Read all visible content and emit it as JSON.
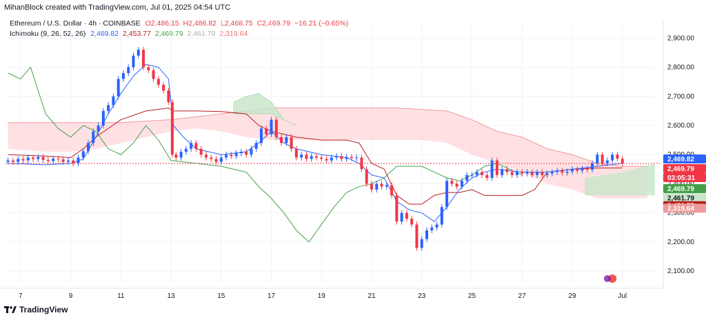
{
  "header": {
    "credit": "MihanBlock created with TradingView.com, Jul 01, 2025 04:54 UTC",
    "symbol_line": "Ethereum / U.S. Dollar · 4h · COINBASE",
    "ohlc": {
      "o": "O2,486.15",
      "h": "H2,486.82",
      "l": "L2,468.75",
      "c": "C2,469.79",
      "change": "−16.21 (−0.65%)"
    },
    "indicator_name": "Ichimoku (9, 26, 52, 26)",
    "indicator_values": {
      "conversion": "2,469.82",
      "base": "2,453.77",
      "lead1": "2,469.79",
      "lead2": "2,461.79",
      "lagging": "2,319.64"
    }
  },
  "footer": {
    "brand": "TradingView",
    "logo_icon": "tradingview-logo-icon"
  },
  "colors": {
    "up": "#2962ff",
    "down": "#f23645",
    "conversion": "#2962ff",
    "base": "#b71c1c",
    "lagging": "#43a047",
    "cloud_bull": "#c8e6c9",
    "cloud_bear": "#ffcdd2"
  },
  "chart_data": {
    "type": "candlestick",
    "ylim": [
      2060,
      2960
    ],
    "yticks": [
      2100,
      2200,
      2300,
      2400,
      2500,
      2600,
      2700,
      2800,
      2900
    ],
    "ytick_labels": [
      "2,100.00",
      "2,200.00",
      "2,300.00",
      "2,400.00",
      "2,500.00",
      "2,600.00",
      "2,700.00",
      "2,800.00",
      "2,900.00"
    ],
    "xlim": [
      6.4,
      32.3
    ],
    "xticks": [
      {
        "x": 7,
        "label": "7"
      },
      {
        "x": 9,
        "label": "9"
      },
      {
        "x": 11,
        "label": "11"
      },
      {
        "x": 13,
        "label": "13"
      },
      {
        "x": 15,
        "label": "15"
      },
      {
        "x": 17,
        "label": "17"
      },
      {
        "x": 19,
        "label": "19"
      },
      {
        "x": 21,
        "label": "21"
      },
      {
        "x": 23,
        "label": "23"
      },
      {
        "x": 25,
        "label": "25"
      },
      {
        "x": 27,
        "label": "27"
      },
      {
        "x": 29,
        "label": "29"
      },
      {
        "x": 31,
        "label": "Jul"
      }
    ],
    "candles_close": [
      [
        6.5,
        2480
      ],
      [
        6.7,
        2475
      ],
      [
        6.9,
        2485
      ],
      [
        7.1,
        2480
      ],
      [
        7.3,
        2490
      ],
      [
        7.5,
        2485
      ],
      [
        7.7,
        2492
      ],
      [
        7.9,
        2482
      ],
      [
        8.1,
        2478
      ],
      [
        8.3,
        2486
      ],
      [
        8.5,
        2484
      ],
      [
        8.7,
        2475
      ],
      [
        8.9,
        2480
      ],
      [
        9.1,
        2470
      ],
      [
        9.3,
        2490
      ],
      [
        9.5,
        2512
      ],
      [
        9.7,
        2540
      ],
      [
        9.9,
        2580
      ],
      [
        10.1,
        2600
      ],
      [
        10.3,
        2650
      ],
      [
        10.5,
        2670
      ],
      [
        10.7,
        2700
      ],
      [
        10.9,
        2760
      ],
      [
        11.1,
        2780
      ],
      [
        11.3,
        2800
      ],
      [
        11.5,
        2840
      ],
      [
        11.7,
        2860
      ],
      [
        11.9,
        2800
      ],
      [
        12.1,
        2790
      ],
      [
        12.3,
        2760
      ],
      [
        12.5,
        2740
      ],
      [
        12.7,
        2720
      ],
      [
        12.9,
        2680
      ],
      [
        13.05,
        2500
      ],
      [
        13.2,
        2490
      ],
      [
        13.4,
        2510
      ],
      [
        13.6,
        2520
      ],
      [
        13.8,
        2540
      ],
      [
        14.0,
        2520
      ],
      [
        14.2,
        2500
      ],
      [
        14.4,
        2490
      ],
      [
        14.6,
        2485
      ],
      [
        14.8,
        2475
      ],
      [
        15.0,
        2490
      ],
      [
        15.2,
        2500
      ],
      [
        15.4,
        2495
      ],
      [
        15.6,
        2505
      ],
      [
        15.8,
        2510
      ],
      [
        16.0,
        2500
      ],
      [
        16.2,
        2520
      ],
      [
        16.4,
        2540
      ],
      [
        16.6,
        2590
      ],
      [
        16.8,
        2570
      ],
      [
        17.0,
        2620
      ],
      [
        17.2,
        2560
      ],
      [
        17.4,
        2540
      ],
      [
        17.6,
        2560
      ],
      [
        17.8,
        2520
      ],
      [
        18.0,
        2490
      ],
      [
        18.2,
        2500
      ],
      [
        18.4,
        2485
      ],
      [
        18.6,
        2495
      ],
      [
        18.8,
        2490
      ],
      [
        19.0,
        2485
      ],
      [
        19.2,
        2480
      ],
      [
        19.4,
        2490
      ],
      [
        19.6,
        2495
      ],
      [
        19.8,
        2485
      ],
      [
        20.0,
        2492
      ],
      [
        20.2,
        2488
      ],
      [
        20.4,
        2490
      ],
      [
        20.6,
        2450
      ],
      [
        20.8,
        2400
      ],
      [
        21.0,
        2380
      ],
      [
        21.2,
        2400
      ],
      [
        21.4,
        2390
      ],
      [
        21.6,
        2395
      ],
      [
        21.8,
        2360
      ],
      [
        22.0,
        2270
      ],
      [
        22.2,
        2300
      ],
      [
        22.4,
        2280
      ],
      [
        22.6,
        2260
      ],
      [
        22.8,
        2180
      ],
      [
        23.0,
        2210
      ],
      [
        23.2,
        2240
      ],
      [
        23.4,
        2250
      ],
      [
        23.6,
        2260
      ],
      [
        23.8,
        2320
      ],
      [
        24.0,
        2410
      ],
      [
        24.2,
        2400
      ],
      [
        24.4,
        2390
      ],
      [
        24.6,
        2410
      ],
      [
        24.8,
        2430
      ],
      [
        25.0,
        2430
      ],
      [
        25.2,
        2440
      ],
      [
        25.4,
        2430
      ],
      [
        25.6,
        2420
      ],
      [
        25.8,
        2480
      ],
      [
        26.0,
        2430
      ],
      [
        26.2,
        2450
      ],
      [
        26.4,
        2440
      ],
      [
        26.6,
        2430
      ],
      [
        26.8,
        2440
      ],
      [
        27.0,
        2435
      ],
      [
        27.2,
        2440
      ],
      [
        27.4,
        2430
      ],
      [
        27.6,
        2440
      ],
      [
        27.8,
        2430
      ],
      [
        28.0,
        2435
      ],
      [
        28.2,
        2440
      ],
      [
        28.4,
        2445
      ],
      [
        28.6,
        2438
      ],
      [
        28.8,
        2442
      ],
      [
        29.0,
        2450
      ],
      [
        29.2,
        2445
      ],
      [
        29.4,
        2452
      ],
      [
        29.6,
        2448
      ],
      [
        29.8,
        2470
      ],
      [
        30.0,
        2500
      ],
      [
        30.2,
        2470
      ],
      [
        30.4,
        2480
      ],
      [
        30.6,
        2500
      ],
      [
        30.8,
        2486
      ],
      [
        31.0,
        2470
      ]
    ],
    "tenkan": [
      [
        6.5,
        2470
      ],
      [
        8,
        2465
      ],
      [
        9,
        2470
      ],
      [
        9.5,
        2485
      ],
      [
        10,
        2560
      ],
      [
        10.5,
        2640
      ],
      [
        11,
        2710
      ],
      [
        11.5,
        2770
      ],
      [
        12,
        2810
      ],
      [
        12.5,
        2800
      ],
      [
        12.9,
        2760
      ],
      [
        13.1,
        2600
      ],
      [
        13.5,
        2560
      ],
      [
        14,
        2520
      ],
      [
        15,
        2500
      ],
      [
        16,
        2510
      ],
      [
        16.5,
        2540
      ],
      [
        17,
        2580
      ],
      [
        17.5,
        2540
      ],
      [
        18,
        2520
      ],
      [
        19,
        2500
      ],
      [
        20,
        2490
      ],
      [
        20.5,
        2470
      ],
      [
        21,
        2430
      ],
      [
        21.5,
        2420
      ],
      [
        22,
        2340
      ],
      [
        22.5,
        2310
      ],
      [
        23,
        2300
      ],
      [
        23.5,
        2270
      ],
      [
        24,
        2320
      ],
      [
        24.5,
        2380
      ],
      [
        25,
        2420
      ],
      [
        25.5,
        2440
      ],
      [
        26,
        2450
      ],
      [
        27,
        2440
      ],
      [
        28,
        2440
      ],
      [
        29,
        2450
      ],
      [
        30,
        2460
      ],
      [
        31,
        2470
      ]
    ],
    "kijun": [
      [
        6.5,
        2500
      ],
      [
        8,
        2495
      ],
      [
        9,
        2490
      ],
      [
        9.5,
        2520
      ],
      [
        10,
        2560
      ],
      [
        11,
        2620
      ],
      [
        12,
        2650
      ],
      [
        12.9,
        2660
      ],
      [
        13.1,
        2650
      ],
      [
        14,
        2650
      ],
      [
        15,
        2648
      ],
      [
        16,
        2640
      ],
      [
        16.5,
        2600
      ],
      [
        17,
        2580
      ],
      [
        17.5,
        2570
      ],
      [
        18,
        2560
      ],
      [
        19,
        2550
      ],
      [
        20,
        2550
      ],
      [
        20.5,
        2540
      ],
      [
        21,
        2470
      ],
      [
        21.5,
        2450
      ],
      [
        22,
        2360
      ],
      [
        22.5,
        2330
      ],
      [
        23,
        2330
      ],
      [
        23.5,
        2360
      ],
      [
        24,
        2370
      ],
      [
        24.5,
        2370
      ],
      [
        25,
        2380
      ],
      [
        25.5,
        2360
      ],
      [
        26,
        2360
      ],
      [
        27,
        2360
      ],
      [
        27.5,
        2380
      ],
      [
        28,
        2440
      ],
      [
        29,
        2450
      ],
      [
        30,
        2454
      ],
      [
        31,
        2454
      ]
    ],
    "lagging": [
      [
        6.5,
        2780
      ],
      [
        7,
        2760
      ],
      [
        7.4,
        2800
      ],
      [
        8,
        2640
      ],
      [
        8.5,
        2590
      ],
      [
        9,
        2560
      ],
      [
        9.5,
        2600
      ],
      [
        10,
        2580
      ],
      [
        10.5,
        2520
      ],
      [
        11,
        2500
      ],
      [
        11.5,
        2540
      ],
      [
        12,
        2600
      ],
      [
        12.5,
        2550
      ],
      [
        13,
        2480
      ],
      [
        14,
        2470
      ],
      [
        15,
        2460
      ],
      [
        15.5,
        2450
      ],
      [
        16,
        2440
      ],
      [
        16.5,
        2390
      ],
      [
        17,
        2350
      ],
      [
        17.5,
        2300
      ],
      [
        18,
        2240
      ],
      [
        18.5,
        2200
      ],
      [
        19,
        2260
      ],
      [
        19.5,
        2320
      ],
      [
        20,
        2370
      ],
      [
        20.5,
        2390
      ],
      [
        21,
        2400
      ],
      [
        21.5,
        2420
      ],
      [
        22,
        2460
      ],
      [
        23,
        2460
      ],
      [
        24,
        2420
      ],
      [
        24.5,
        2410
      ],
      [
        25,
        2430
      ],
      [
        25.5,
        2460
      ],
      [
        26,
        2470
      ],
      [
        26.5,
        2450
      ],
      [
        27,
        2430
      ]
    ],
    "kumo_upper": [
      [
        6.5,
        2610
      ],
      [
        8,
        2610
      ],
      [
        9,
        2610
      ],
      [
        10,
        2610
      ],
      [
        11,
        2610
      ],
      [
        12,
        2615
      ],
      [
        13,
        2620
      ],
      [
        14,
        2630
      ],
      [
        15,
        2640
      ],
      [
        16,
        2650
      ],
      [
        17,
        2660
      ],
      [
        18,
        2660
      ],
      [
        19,
        2660
      ],
      [
        20,
        2660
      ],
      [
        21,
        2660
      ],
      [
        22,
        2660
      ],
      [
        23,
        2655
      ],
      [
        24,
        2650
      ],
      [
        25,
        2620
      ],
      [
        26,
        2580
      ],
      [
        27,
        2560
      ],
      [
        28,
        2520
      ],
      [
        29,
        2500
      ],
      [
        30,
        2470
      ],
      [
        31,
        2460
      ],
      [
        32,
        2460
      ]
    ],
    "kumo_lower": [
      [
        6.5,
        2520
      ],
      [
        8,
        2510
      ],
      [
        9,
        2510
      ],
      [
        10,
        2520
      ],
      [
        11,
        2540
      ],
      [
        12,
        2560
      ],
      [
        13,
        2580
      ],
      [
        14,
        2590
      ],
      [
        15,
        2580
      ],
      [
        16,
        2560
      ],
      [
        17,
        2550
      ],
      [
        18,
        2550
      ],
      [
        19,
        2550
      ],
      [
        20,
        2550
      ],
      [
        21,
        2550
      ],
      [
        22,
        2550
      ],
      [
        23,
        2550
      ],
      [
        24,
        2540
      ],
      [
        25,
        2500
      ],
      [
        26,
        2470
      ],
      [
        27,
        2440
      ],
      [
        28,
        2400
      ],
      [
        29,
        2380
      ],
      [
        30,
        2350
      ],
      [
        31,
        2350
      ],
      [
        32,
        2350
      ]
    ],
    "cloud_green_upper": [
      [
        15.5,
        2680
      ],
      [
        16,
        2700
      ],
      [
        16.5,
        2710
      ],
      [
        17,
        2680
      ],
      [
        17.5,
        2620
      ],
      [
        18,
        2600
      ]
    ],
    "cloud_green_lower": [
      [
        15.5,
        2640
      ],
      [
        16,
        2640
      ],
      [
        16.5,
        2640
      ],
      [
        17,
        2640
      ],
      [
        17.5,
        2620
      ],
      [
        18,
        2600
      ]
    ],
    "last_price": 2469.79,
    "price_labels": [
      {
        "value": "2,469.82",
        "color": "#2962ff"
      },
      {
        "value": "2,469.79",
        "color": "#f23645"
      },
      {
        "value": "03:05:31",
        "color": "#f23645"
      },
      {
        "value": "2,469.79",
        "color": "#43a047"
      },
      {
        "value": "2,461.79",
        "color": "#c8e6c9"
      },
      {
        "value": "2,453.77",
        "color": "#b71c1c"
      },
      {
        "value": "2,319.64",
        "color": "#ef9a9a"
      }
    ]
  }
}
